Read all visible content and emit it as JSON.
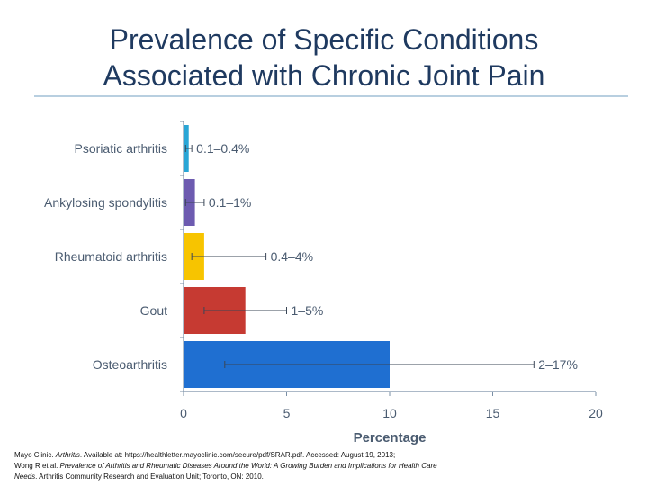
{
  "slide": {
    "title_line1": "Prevalence of Specific Conditions",
    "title_line2": "Associated with Chronic Joint Pain"
  },
  "chart_data": {
    "type": "bar",
    "orientation": "horizontal",
    "title": "",
    "xlabel": "Percentage",
    "ylabel": "",
    "xlim": [
      0,
      20
    ],
    "xticks": [
      0,
      5,
      10,
      15,
      20
    ],
    "grid": false,
    "categories": [
      "Psoriatic arthritis",
      "Ankylosing spondylitis",
      "Rheumatoid arthritis",
      "Gout",
      "Osteoarthritis"
    ],
    "values": [
      0.25,
      0.55,
      1,
      3,
      10
    ],
    "error_low": [
      0.1,
      0.1,
      0.4,
      1,
      2
    ],
    "error_high": [
      0.4,
      1,
      4,
      5,
      17
    ],
    "range_labels": [
      "0.1–0.4%",
      "0.1–1%",
      "0.4–4%",
      "1–5%",
      "2–17%"
    ],
    "colors": [
      "#29a6d6",
      "#6d5bb0",
      "#f7c400",
      "#c63a32",
      "#1f6fd1"
    ]
  },
  "reference": {
    "line1_pre": "Mayo Clinic. ",
    "line1_italic": "Arthritis",
    "line1_post": ". Available at: https://healthletter.mayoclinic.com/secure/pdf/SRAR.pdf. Accessed: August 19, 2013;",
    "line2_pre": "Wong R et al. ",
    "line2_italic": "Prevalence of Arthritis and Rheumatic Diseases Around the World: A Growing Burden and Implications for Health Care",
    "line3_italic": "Needs",
    "line3_post": ". Arthritis Community Research and Evaluation Unit; Toronto, ON: 2010."
  }
}
